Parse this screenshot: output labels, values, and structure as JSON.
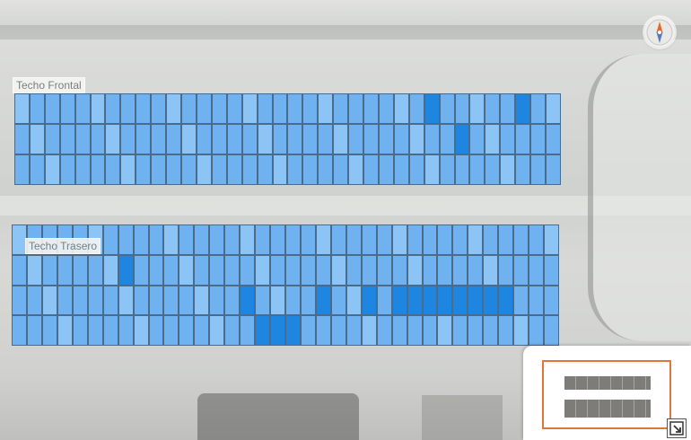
{
  "roofs": [
    {
      "label": "Techo Frontal",
      "rows": 3,
      "cols": 36,
      "highlighted_panels": [
        [
          0,
          27
        ],
        [
          0,
          33
        ],
        [
          1,
          29
        ]
      ]
    },
    {
      "label": "Techo Trasero",
      "rows": 4,
      "cols": 36,
      "highlighted_panels": [
        [
          1,
          7
        ],
        [
          2,
          15
        ],
        [
          2,
          20
        ],
        [
          2,
          23
        ],
        [
          2,
          25
        ],
        [
          2,
          26
        ],
        [
          2,
          27
        ],
        [
          2,
          28
        ],
        [
          2,
          29
        ],
        [
          2,
          30
        ],
        [
          2,
          31
        ],
        [
          2,
          32
        ],
        [
          3,
          16
        ],
        [
          3,
          17
        ],
        [
          3,
          18
        ]
      ]
    }
  ],
  "compass": {
    "icon": "compass-icon"
  },
  "minimap": {
    "icon": "minimap-thumbnail"
  },
  "expand_button": {
    "icon": "expand-icon"
  },
  "colors": {
    "panel": "#6fb2ef",
    "panel_light": "#8cc5f5",
    "panel_highlight": "#1e86e0",
    "panel_border": "#4a6c8c",
    "viewport_outline": "#e0773a",
    "compass_north": "#e06a2c"
  }
}
